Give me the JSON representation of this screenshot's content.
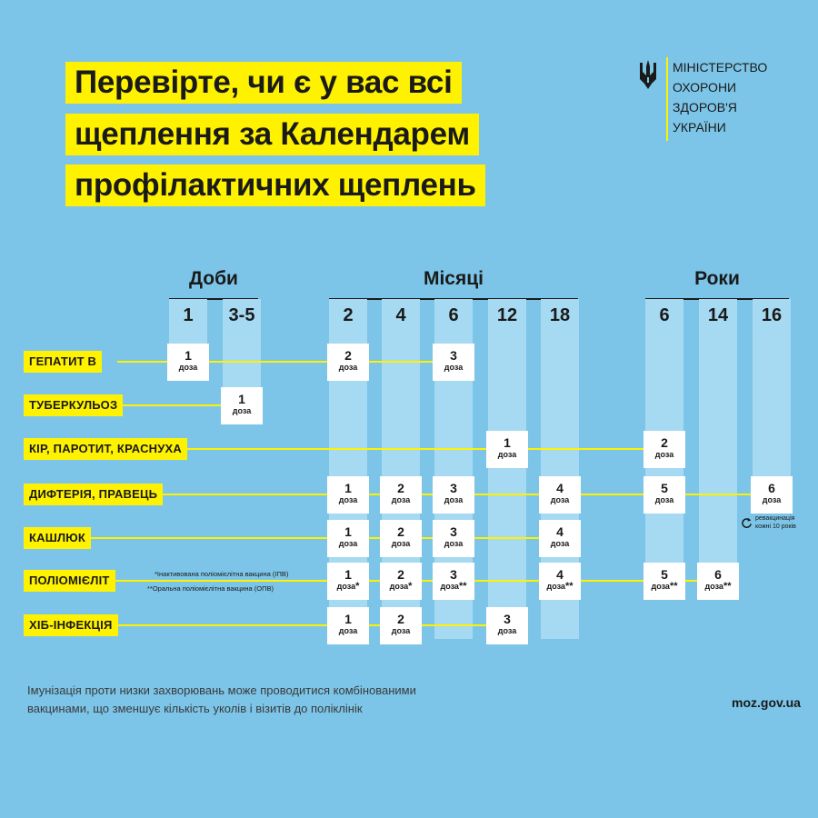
{
  "title": {
    "lines": [
      "Перевірте, чи є у вас всі",
      "щеплення за Календарем",
      "профілактичних щеплень"
    ]
  },
  "ministry": {
    "lines": [
      "МІНІСТЕРСТВО",
      "ОХОРОНИ",
      "ЗДОРОВ'Я",
      "УКРАЇНИ"
    ],
    "icon": "trident-icon",
    "separator_color": "#fff200"
  },
  "schedule": {
    "groups": [
      "Доби",
      "Місяці",
      "Роки"
    ],
    "columns": [
      "1",
      "3-5",
      "2",
      "4",
      "6",
      "12",
      "18",
      "6",
      "14",
      "16"
    ],
    "dose_word": "доза",
    "rows": [
      {
        "label": "ГЕПАТИТ В",
        "doses": [
          {
            "col": 0,
            "n": "1",
            "mark": ""
          },
          {
            "col": 2,
            "n": "2",
            "mark": ""
          },
          {
            "col": 4,
            "n": "3",
            "mark": ""
          }
        ]
      },
      {
        "label": "ТУБЕРКУЛЬОЗ",
        "doses": [
          {
            "col": 1,
            "n": "1",
            "mark": ""
          }
        ]
      },
      {
        "label": "КІР, ПАРОТИТ, КРАСНУХА",
        "doses": [
          {
            "col": 5,
            "n": "1",
            "mark": ""
          },
          {
            "col": 7,
            "n": "2",
            "mark": ""
          }
        ]
      },
      {
        "label": "ДИФТЕРІЯ, ПРАВЕЦЬ",
        "doses": [
          {
            "col": 2,
            "n": "1",
            "mark": ""
          },
          {
            "col": 3,
            "n": "2",
            "mark": ""
          },
          {
            "col": 4,
            "n": "3",
            "mark": ""
          },
          {
            "col": 6,
            "n": "4",
            "mark": ""
          },
          {
            "col": 7,
            "n": "5",
            "mark": ""
          },
          {
            "col": 9,
            "n": "6",
            "mark": ""
          }
        ]
      },
      {
        "label": "КАШЛЮК",
        "doses": [
          {
            "col": 2,
            "n": "1",
            "mark": ""
          },
          {
            "col": 3,
            "n": "2",
            "mark": ""
          },
          {
            "col": 4,
            "n": "3",
            "mark": ""
          },
          {
            "col": 6,
            "n": "4",
            "mark": ""
          }
        ]
      },
      {
        "label": "ПОЛІОМІЄЛІТ",
        "doses": [
          {
            "col": 2,
            "n": "1",
            "mark": "*"
          },
          {
            "col": 3,
            "n": "2",
            "mark": "*"
          },
          {
            "col": 4,
            "n": "3",
            "mark": "**"
          },
          {
            "col": 6,
            "n": "4",
            "mark": "**"
          },
          {
            "col": 7,
            "n": "5",
            "mark": "**"
          },
          {
            "col": 8,
            "n": "6",
            "mark": "**"
          }
        ]
      },
      {
        "label": "ХІБ-ІНФЕКЦІЯ",
        "doses": [
          {
            "col": 2,
            "n": "1",
            "mark": ""
          },
          {
            "col": 3,
            "n": "2",
            "mark": ""
          },
          {
            "col": 5,
            "n": "3",
            "mark": ""
          }
        ]
      }
    ],
    "polio_notes": [
      "*Інактивована поліомієлітна вакцина (ІПВ)",
      "**Оральна поліомієлітна вакцина (ОПВ)"
    ],
    "revaccination": {
      "lines": [
        "ревакцинація",
        "кожні 10 років"
      ],
      "icon": "repeat-icon"
    }
  },
  "footer": {
    "text_lines": [
      "Імунізація проти низки захворювань може проводитися комбінованими",
      "вакцинами, що зменшує кількість уколів і візитів до поліклінік"
    ],
    "site": "moz.gov.ua"
  },
  "colors": {
    "background": "#7cc5e8",
    "highlight": "#fff200",
    "column": "#a6d9f2",
    "dose_box": "#ffffff"
  }
}
